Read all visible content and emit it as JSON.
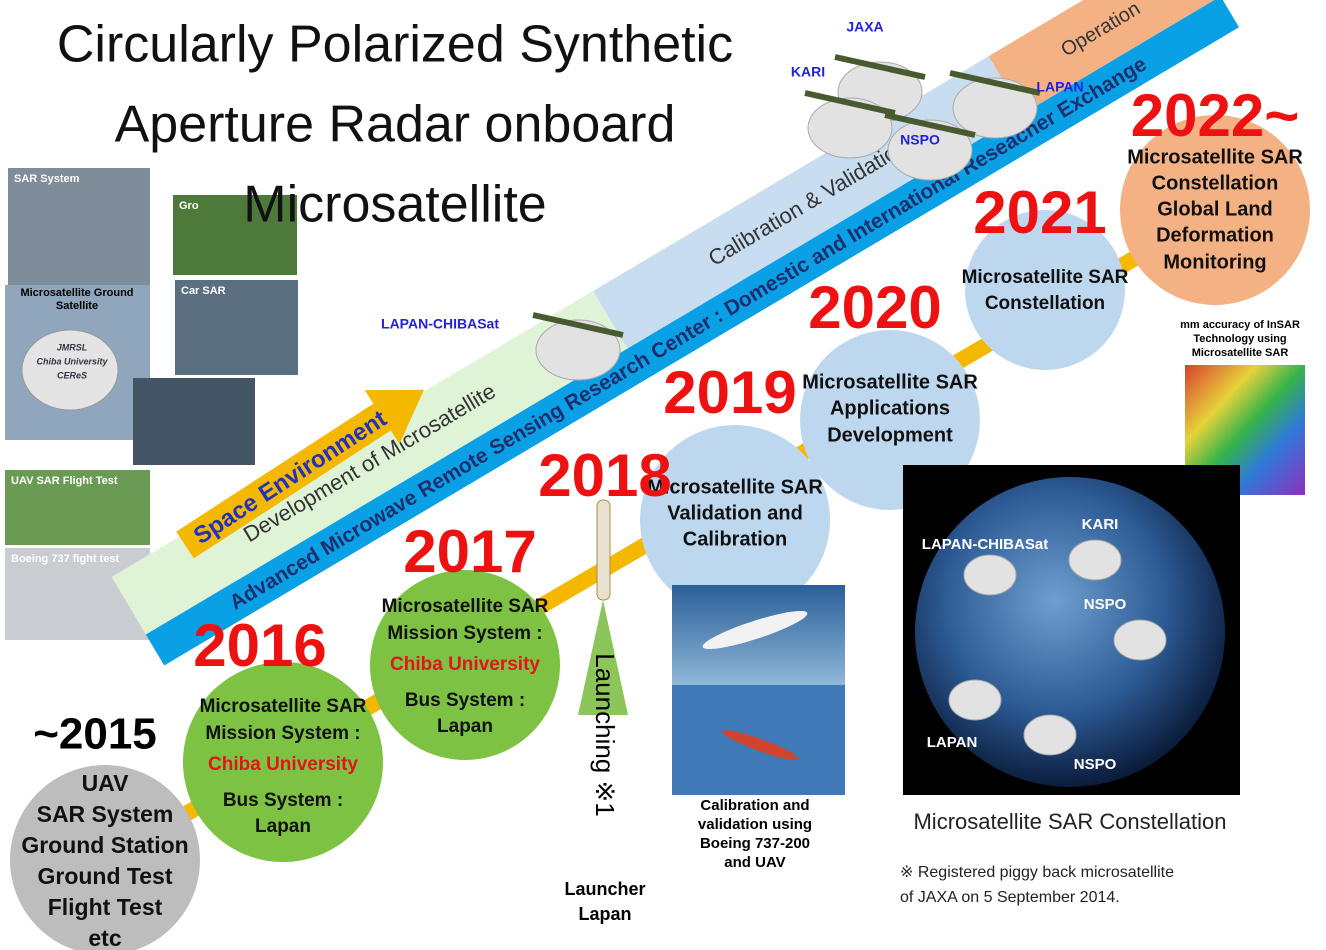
{
  "title": [
    "Circularly Polarized Synthetic",
    "Aperture Radar onboard",
    "Microsatellite"
  ],
  "photo_labels": [
    "SAR System",
    "Gro",
    "Car SAR",
    "UAV SAR Flight Test",
    "Boeing 737 fight test"
  ],
  "ground_station_label": [
    "Microsatellite Ground",
    "Satellite"
  ],
  "dish_text": [
    "JMRSL",
    "Chiba University",
    "CEReS"
  ],
  "satellites": [
    "JAXA",
    "KARI",
    "LAPAN",
    "NSPO",
    "LAPAN-CHIBASat"
  ],
  "bands": {
    "operation": "Operation",
    "calibration": "Calibration & Validation",
    "development": "Development of Microsatellite",
    "center": "Advanced Microwave Remote Sensing Research Center : Domestic and International Reseacher Exchange"
  },
  "space_environment": "Space Environment",
  "years": [
    "~2015",
    "2016",
    "2017",
    "2018",
    "2019",
    "2020",
    "2021",
    "2022~"
  ],
  "milestones": [
    {
      "lines": [
        "UAV",
        "SAR System",
        "Ground Station",
        "Ground Test",
        "Flight Test",
        "etc"
      ]
    },
    {
      "lines": [
        "Microsatellite SAR",
        "Mission System :",
        "Chiba University",
        "Bus System :",
        "Lapan"
      ]
    },
    {
      "lines": [
        "Microsatellite SAR",
        "Mission System :",
        "Chiba University",
        "Bus System :",
        "Lapan"
      ]
    },
    {
      "lines": [
        "Microsatellite SAR",
        "Validation and",
        "Calibration"
      ]
    },
    {
      "lines": [
        "Microsatellite SAR",
        "Applications",
        "Development"
      ]
    },
    {
      "lines": [
        "Microsatellite SAR",
        "Constellation"
      ]
    },
    {
      "lines": [
        "Microsatellite SAR",
        "Constellation",
        "Global Land",
        "Deformation",
        "Monitoring"
      ]
    }
  ],
  "launch": {
    "label": "Launching ※1",
    "vehicle": [
      "Launcher",
      "Lapan"
    ]
  },
  "calibration_caption": [
    "Calibration and",
    "validation using",
    "Boeing 737-200",
    "and UAV"
  ],
  "insar_caption": [
    "mm accuracy of InSAR",
    "Technology using",
    "Microsatellite SAR"
  ],
  "constellation": {
    "labels": [
      "LAPAN-CHIBASat",
      "KARI",
      "NSPO",
      "LAPAN",
      "NSPO"
    ],
    "caption": "Microsatellite SAR Constellation"
  },
  "note": [
    "※ Registered piggy back microsatellite",
    "of JAXA on 5 September 2014."
  ]
}
